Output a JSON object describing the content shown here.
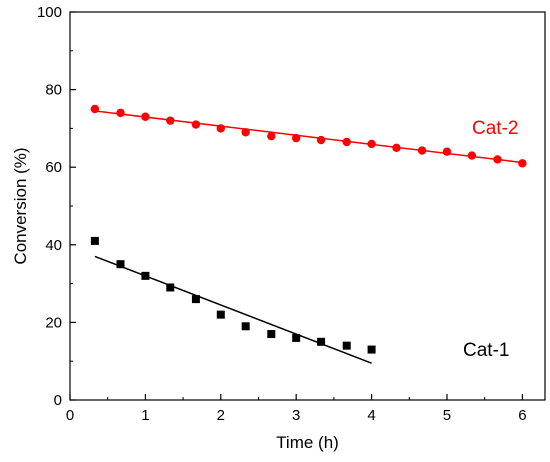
{
  "chart_data": {
    "type": "scatter",
    "xlabel": "Time (h)",
    "ylabel": "Conversion (%)",
    "xlim": [
      0,
      6.3
    ],
    "ylim": [
      0,
      100
    ],
    "x_ticks": [
      0,
      1,
      2,
      3,
      4,
      5,
      6
    ],
    "y_ticks": [
      0,
      20,
      40,
      60,
      80,
      100
    ],
    "grid": false,
    "legend": "none",
    "series": [
      {
        "name": "Cat-2",
        "color": "#ff0000",
        "marker": "circle",
        "x": [
          0.33,
          0.67,
          1.0,
          1.33,
          1.67,
          2.0,
          2.33,
          2.67,
          3.0,
          3.33,
          3.67,
          4.0,
          4.33,
          4.67,
          5.0,
          5.33,
          5.67,
          6.0
        ],
        "y": [
          75,
          74,
          73,
          72,
          71,
          70,
          69,
          68,
          67.5,
          67,
          66.5,
          66,
          65,
          64.3,
          64,
          63,
          62,
          61
        ],
        "fit_line": {
          "x": [
            0.33,
            6.0
          ],
          "y": [
            74.5,
            61.2
          ]
        }
      },
      {
        "name": "Cat-1",
        "color": "#000000",
        "marker": "square",
        "x": [
          0.33,
          0.67,
          1.0,
          1.33,
          1.67,
          2.0,
          2.33,
          2.67,
          3.0,
          3.33,
          3.67,
          4.0
        ],
        "y": [
          41,
          35,
          32,
          29,
          26,
          22,
          19,
          17,
          16,
          15,
          14,
          13
        ],
        "fit_line": {
          "x": [
            0.33,
            4.0
          ],
          "y": [
            37,
            9.5
          ]
        }
      }
    ]
  }
}
